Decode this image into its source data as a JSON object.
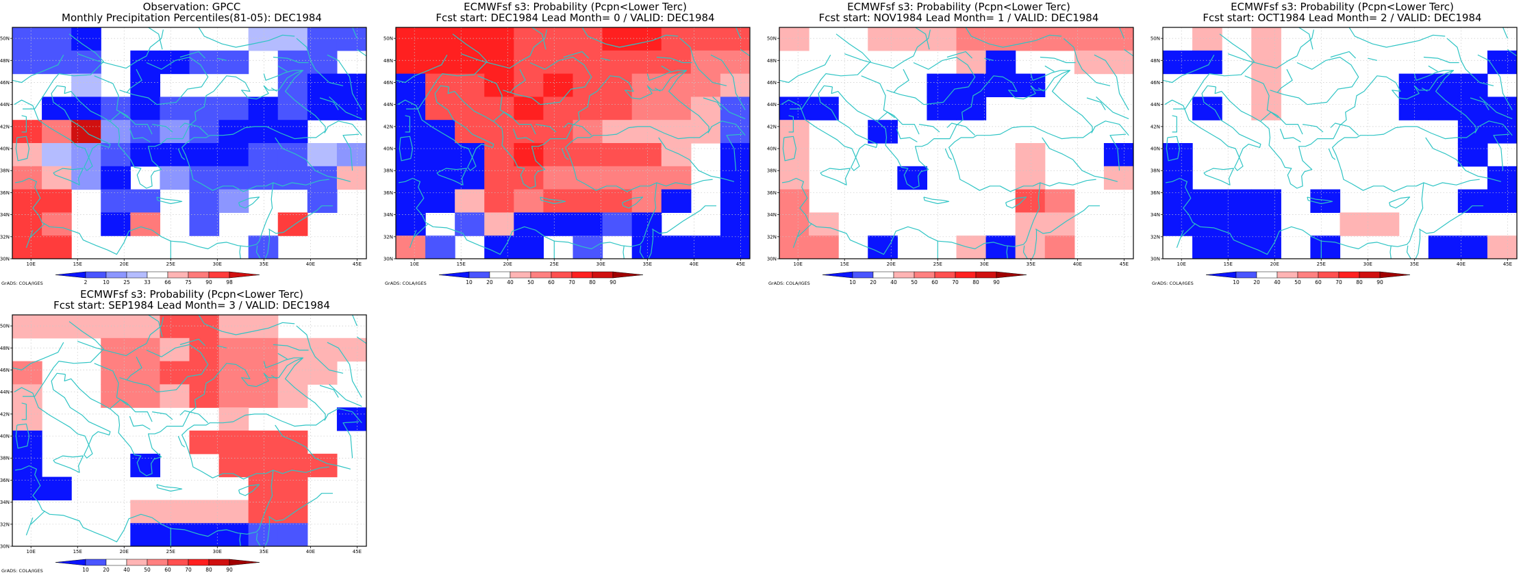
{
  "figure": {
    "credit": "GrADS: COLA/IGES"
  },
  "map": {
    "lon_range": [
      8,
      46
    ],
    "lat_range": [
      30,
      51
    ],
    "lon_ticks": [
      "10E",
      "15E",
      "20E",
      "25E",
      "30E",
      "35E",
      "40E",
      "45E"
    ],
    "lat_ticks": [
      "30N",
      "32N",
      "34N",
      "36N",
      "38N",
      "40N",
      "42N",
      "44N",
      "46N",
      "48N",
      "50N"
    ],
    "grid_cell_deg": 2.5,
    "coast_color": "#2ec4c4",
    "grid": true
  },
  "colorbars": {
    "percentile": {
      "labels": [
        "2",
        "10",
        "25",
        "33",
        "66",
        "75",
        "90",
        "98"
      ],
      "colors": [
        "#0a14ff",
        "#4a55ff",
        "#8c96ff",
        "#b4bcff",
        "#ffffff",
        "#ffb4b4",
        "#ff7a7a",
        "#ff3c3c",
        "#d01010"
      ]
    },
    "probability": {
      "labels": [
        "10",
        "20",
        "40",
        "50",
        "60",
        "70",
        "80",
        "90"
      ],
      "colors": [
        "#0a14ff",
        "#4a55ff",
        "#ffffff",
        "#ffb4b4",
        "#ff8080",
        "#ff5050",
        "#ff2020",
        "#d01010",
        "#a00000"
      ]
    }
  },
  "panels": [
    {
      "title1": "Observation: GPCC",
      "title2": "Monthly Precipitation Percentiles(81-05): DEC1984",
      "colorbar": "percentile",
      "palette": [
        "#ffffff",
        "#0a14ff",
        "#4a55ff",
        "#8c96ff",
        "#b4bcff",
        "#ffb4b4",
        "#ff7a7a",
        "#ff3c3c",
        "#d01010"
      ],
      "grid_rows": [
        "221000004422",
        "222011220220",
        "004010000211",
        "011212221211",
        "768323211100",
        "543211112243",
        "653103222225",
        "770220230020",
        "760160200700",
        "770000002000"
      ]
    },
    {
      "title1": "ECMWFsf s3: Probability (Pcpn<Lower Terc)",
      "title2": "Fcst start: DEC1984   Lead Month= 0 / VALID: DEC1984",
      "colorbar": "probability",
      "palette": [
        "#ffffff",
        "#0a14ff",
        "#4a55ff",
        "#ffb4b4",
        "#ff8080",
        "#ff5050",
        "#ff2020",
        "#d01010"
      ],
      "grid_rows": [
        "666655566555",
        "666655555544",
        "155656554443",
        "155565554432",
        "115555433332",
        "111565555301",
        "111554444401",
        "113545554101",
        "102311121001",
        "420110201111"
      ]
    },
    {
      "title1": "ECMWFsf s3: Probability (Pcpn<Lower Terc)",
      "title2": "Fcst start: NOV1984   Lead Month= 1 / VALID: DEC1984",
      "colorbar": "probability",
      "palette": [
        "#ffffff",
        "#0a14ff",
        "#4a55ff",
        "#ffb4b4",
        "#ff8080",
        "#ff5050",
        "#ff2020",
        "#d01010"
      ],
      "grid_rows": [
        "300333444444",
        "000000310033",
        "000001111000",
        "110001100000",
        "300100000000",
        "300000003001",
        "300010003003",
        "400000005400",
        "430000003300",
        "440100313400"
      ]
    },
    {
      "title1": "ECMWFsf s3: Probability (Pcpn<Lower Terc)",
      "title2": "Fcst start: OCT1984   Lead Month= 2 / VALID: DEC1984",
      "colorbar": "probability",
      "palette": [
        "#ffffff",
        "#0a14ff",
        "#4a55ff",
        "#ffb4b4",
        "#ff8080",
        "#ff5050",
        "#ff2020",
        "#d01010"
      ],
      "grid_rows": [
        "030300000000",
        "110300000001",
        "000300001110",
        "010300001111",
        "000000000011",
        "100000000010",
        "100000000001",
        "111101000011",
        "111100330000",
        "011101000113"
      ]
    },
    {
      "title1": "ECMWFsf s3: Probability (Pcpn<Lower Terc)",
      "title2": "Fcst start: SEP1984   Lead Month= 3 / VALID: DEC1984",
      "colorbar": "probability",
      "palette": [
        "#ffffff",
        "#0a14ff",
        "#4a55ff",
        "#ffb4b4",
        "#ff8080",
        "#ff5050",
        "#ff2020",
        "#d01010"
      ],
      "grid_rows": [
        "333335533000",
        "000443544333",
        "400445544330",
        "300443544300",
        "300000030001",
        "100000555500",
        "100010055550",
        "110000005500",
        "000033335500",
        "000011112200"
      ]
    }
  ]
}
